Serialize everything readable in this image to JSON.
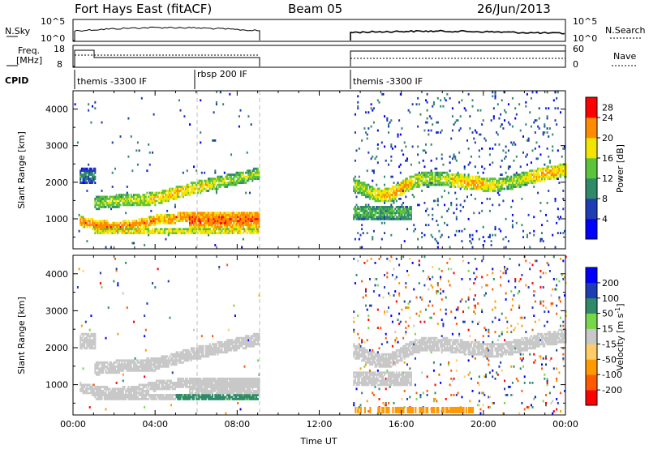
{
  "header": {
    "title_left": "Fort Hays East (fitACF)",
    "title_center": "Beam 05",
    "title_right": "26/Jun/2013"
  },
  "summary_panels": {
    "nsky_label": "N.Sky",
    "nsky_ticks": [
      "10^5",
      "10^0"
    ],
    "nsearch_ticks": [
      "10^5",
      "10^0"
    ],
    "nsearch_label": "N.Search",
    "freq_label_1": "Freq.",
    "freq_label_2": "[MHz]",
    "freq_ticks": [
      "18",
      "8"
    ],
    "nave_ticks": [
      "60",
      "0"
    ],
    "nave_label": "Nave",
    "cpid_label": "CPID",
    "cpid_segments": [
      {
        "label": "themis -3300 IF",
        "start_hour": 0.0,
        "end_hour": 6.0
      },
      {
        "label": "rbsp 200 IF",
        "start_hour": 6.0,
        "end_hour": 9.1
      },
      {
        "label": "themis -3300 IF",
        "start_hour": 13.6,
        "end_hour": 24.0
      }
    ]
  },
  "chart_data": [
    {
      "type": "heatmap",
      "parameter": "power",
      "xlabel": "",
      "ylabel": "Slant Range [km]",
      "xlim": [
        0,
        24
      ],
      "ylim": [
        180,
        4500
      ],
      "yticks": [
        "1000",
        "2000",
        "3000",
        "4000"
      ],
      "colorbar_label": "Power [dB]",
      "colorbar_ticks": [
        "4",
        "8",
        "12",
        "16",
        "20",
        "24",
        "28"
      ],
      "colorbar_range": [
        0,
        32
      ],
      "colors": [
        "#0000ff",
        "#1e3cb4",
        "#2f8a6a",
        "#5cc43a",
        "#f2e600",
        "#ff8c00",
        "#ff0000"
      ],
      "data_gaps": [
        [
          9.1,
          13.6
        ]
      ],
      "echo_bands": [
        {
          "t_start": 1.0,
          "t_end": 8.8,
          "range_start_km": 1300,
          "range_end_km": 2400,
          "dominant_power_db": 16
        },
        {
          "t_start": 0.0,
          "t_end": 9.0,
          "range_start_km": 600,
          "range_end_km": 1100,
          "dominant_power_db": 22
        },
        {
          "t_start": 13.6,
          "t_end": 24.0,
          "range_start_km": 1600,
          "range_end_km": 2400,
          "dominant_power_db": 18
        }
      ]
    },
    {
      "type": "heatmap",
      "parameter": "velocity",
      "xlabel": "Time UT",
      "ylabel": "Slant Range [km]",
      "xlim": [
        0,
        24
      ],
      "ylim": [
        180,
        4500
      ],
      "xticks": [
        "00:00",
        "04:00",
        "08:00",
        "12:00",
        "16:00",
        "20:00",
        "00:00"
      ],
      "yticks": [
        "1000",
        "2000",
        "3000",
        "4000"
      ],
      "colorbar_label": "Velocity [m s^-1]",
      "colorbar_ticks": [
        "-200",
        "-100",
        "-50",
        "-15",
        "15",
        "50",
        "100",
        "200"
      ],
      "colorbar_range": [
        -250,
        250
      ],
      "colors": [
        "#ff0000",
        "#ff5a00",
        "#ff9a00",
        "#ffcc66",
        "#c8c8c8",
        "#77d64a",
        "#2f8a6a",
        "#1e3cb4",
        "#0000ff"
      ],
      "data_gaps": [
        [
          9.1,
          13.6
        ]
      ]
    }
  ]
}
